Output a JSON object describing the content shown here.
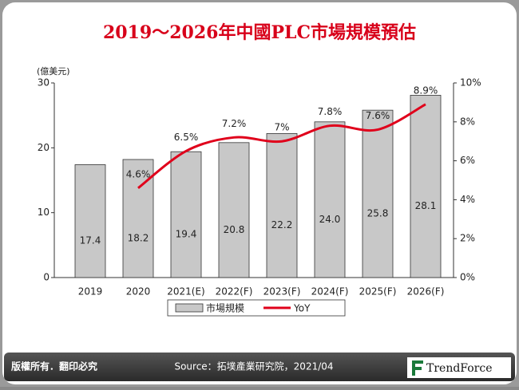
{
  "chart_data": {
    "type": "bar-line",
    "title": "2019～2026年中國PLC市場規模預估",
    "y_axis_label": "(億美元)",
    "categories": [
      "2019",
      "2020",
      "2021(E)",
      "2022(F)",
      "2023(F)",
      "2024(F)",
      "2025(F)",
      "2026(F)"
    ],
    "series": [
      {
        "name": "市場規模",
        "type": "bar",
        "color": "#c8c8c8",
        "values": [
          17.4,
          18.2,
          19.4,
          20.8,
          22.2,
          24.0,
          25.8,
          28.1
        ],
        "value_labels": [
          "17.4",
          "18.2",
          "19.4",
          "20.8",
          "22.2",
          "24.0",
          "25.8",
          "28.1"
        ]
      },
      {
        "name": "YoY",
        "type": "line",
        "axis": "y2",
        "color": "#e0001b",
        "values": [
          null,
          4.6,
          6.5,
          7.2,
          7,
          7.8,
          7.6,
          8.9
        ],
        "value_labels": [
          null,
          "4.6%",
          "6.5%",
          "7.2%",
          "7%",
          "7.8%",
          "7.6%",
          "8.9%"
        ]
      }
    ],
    "ylim": [
      0,
      30
    ],
    "yticks": [
      0,
      10,
      20,
      30
    ],
    "y2lim": [
      0,
      10
    ],
    "y2ticks": [
      {
        "value": 0,
        "label": "0%"
      },
      {
        "value": 2,
        "label": "2%"
      },
      {
        "value": 4,
        "label": "4%"
      },
      {
        "value": 6,
        "label": "6%"
      },
      {
        "value": 8,
        "label": "8%"
      },
      {
        "value": 10,
        "label": "10%"
      }
    ],
    "legend": "bottom"
  },
  "footer": {
    "rights": "版權所有．翻印必究",
    "source": "Source：拓墣產業研究院，2021/04",
    "brand": "TrendForce"
  }
}
